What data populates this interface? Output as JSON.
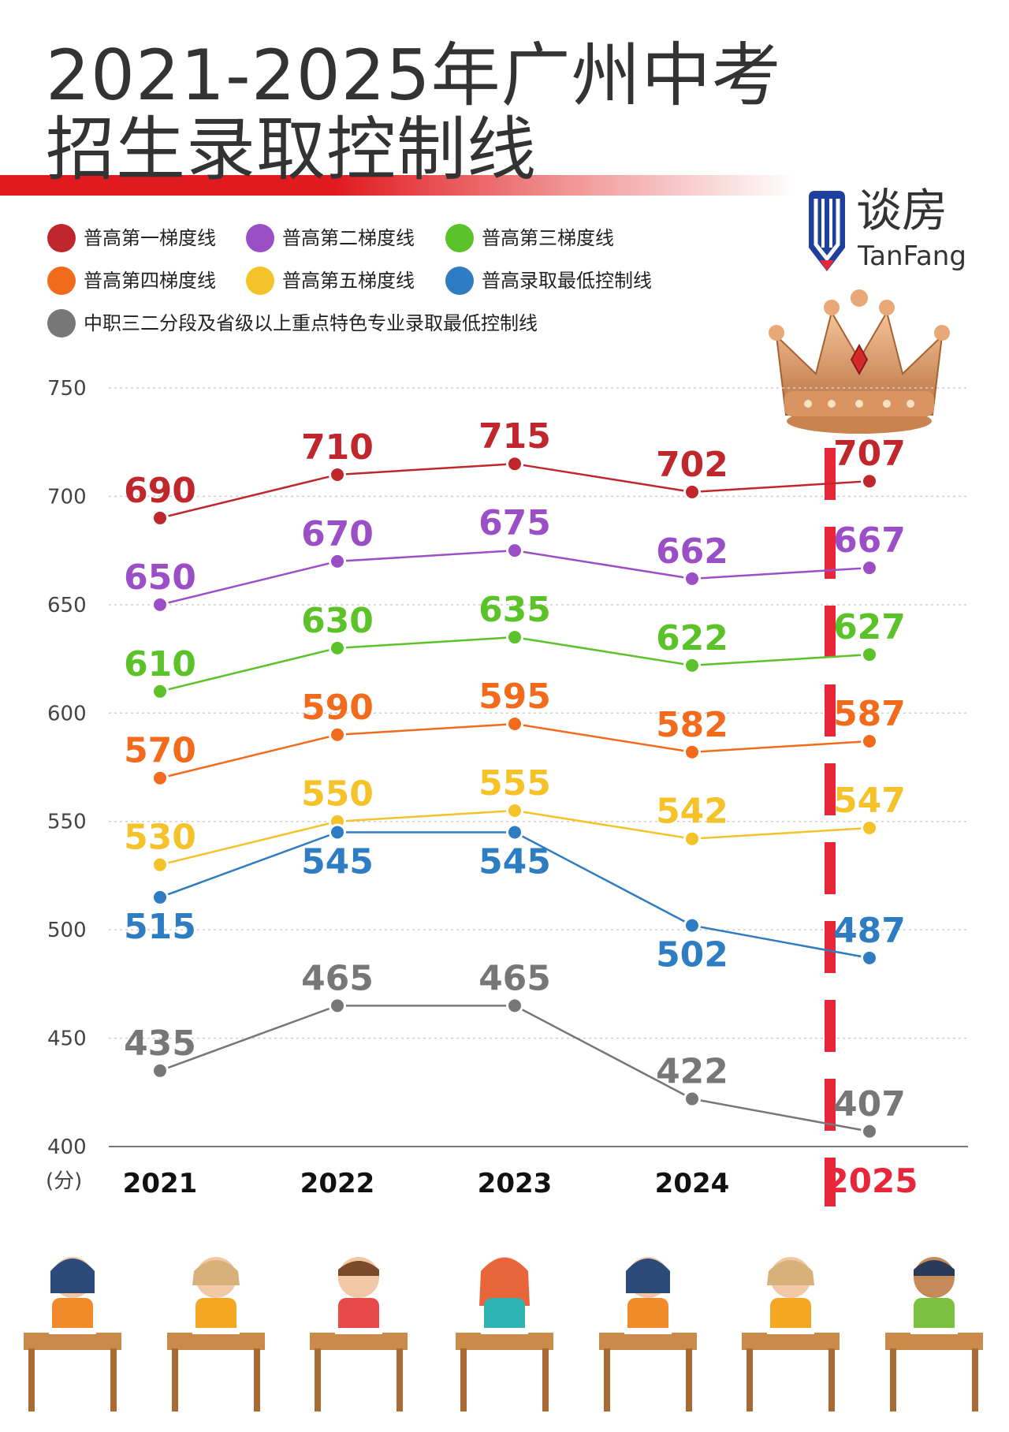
{
  "title": {
    "line1": "2021-2025年广州中考",
    "line2": "招生录取控制线"
  },
  "brand": {
    "name_cn": "谈房",
    "name_en": "TanFang"
  },
  "legend": [
    {
      "label": "普高第一梯度线",
      "color": "#c0272d"
    },
    {
      "label": "普高第二梯度线",
      "color": "#9b4fc7"
    },
    {
      "label": "普高第三梯度线",
      "color": "#5cc22a"
    },
    {
      "label": "普高第四梯度线",
      "color": "#f26a1b"
    },
    {
      "label": "普高第五梯度线",
      "color": "#f5c22a"
    },
    {
      "label": "普高录取最低控制线",
      "color": "#2e7cc1"
    },
    {
      "label": "中职三二分段及省级以上重点特色专业录取最低控制线",
      "color": "#777777"
    }
  ],
  "chart_data": {
    "type": "line",
    "x": [
      "2021",
      "2022",
      "2023",
      "2024",
      "2025"
    ],
    "ylim": [
      400,
      750
    ],
    "yticks": [
      "750",
      "700",
      "650",
      "600",
      "550",
      "500",
      "450",
      "400"
    ],
    "yunit": "(分)",
    "highlight_x": "2025",
    "highlight_color": "#e8263a",
    "grid": true,
    "series": [
      {
        "name": "普高第一梯度线",
        "color": "#c0272d",
        "values": [
          690,
          710,
          715,
          702,
          707
        ]
      },
      {
        "name": "普高第二梯度线",
        "color": "#9b4fc7",
        "values": [
          650,
          670,
          675,
          662,
          667
        ]
      },
      {
        "name": "普高第三梯度线",
        "color": "#5cc22a",
        "values": [
          610,
          630,
          635,
          622,
          627
        ]
      },
      {
        "name": "普高第四梯度线",
        "color": "#f26a1b",
        "values": [
          570,
          590,
          595,
          582,
          587
        ]
      },
      {
        "name": "普高第五梯度线",
        "color": "#f5c22a",
        "values": [
          530,
          550,
          555,
          542,
          547
        ]
      },
      {
        "name": "普高录取最低控制线",
        "color": "#2e7cc1",
        "values": [
          515,
          545,
          545,
          502,
          487
        ]
      },
      {
        "name": "中职三二分段及省级以上重点特色专业录取最低控制线",
        "color": "#777777",
        "values": [
          435,
          465,
          465,
          422,
          407
        ]
      }
    ]
  }
}
